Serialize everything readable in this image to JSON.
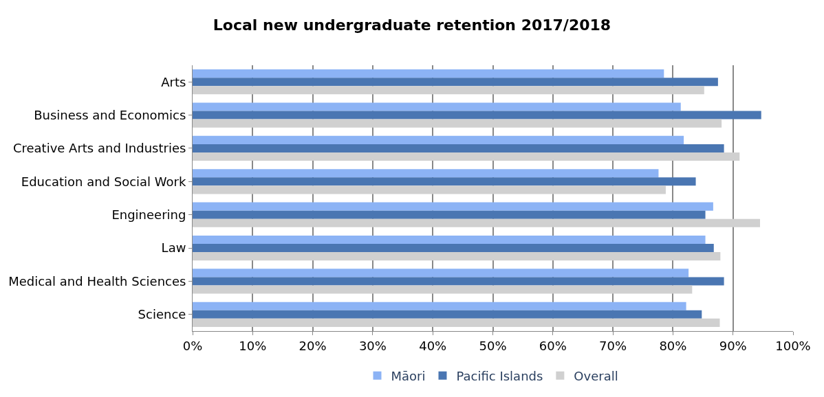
{
  "chart_data": {
    "type": "bar",
    "orientation": "horizontal",
    "title": "Local new undergraduate retention 2017/2018",
    "categories": [
      "Arts",
      "Business and Economics",
      "Creative Arts and Industries",
      "Education and Social Work",
      "Engineering",
      "Law",
      "Medical and Health Sciences",
      "Science"
    ],
    "series": [
      {
        "name": "Māori",
        "color": "#8cb3f5",
        "values": [
          78.5,
          81.3,
          81.8,
          77.6,
          86.7,
          85.4,
          82.6,
          82.2
        ]
      },
      {
        "name": "Pacific Islands",
        "color": "#4a76b2",
        "values": [
          87.5,
          94.7,
          88.5,
          83.8,
          85.4,
          86.8,
          88.5,
          84.8
        ]
      },
      {
        "name": "Overall",
        "color": "#d0d0d0",
        "values": [
          85.2,
          88.1,
          91.1,
          78.8,
          94.5,
          87.9,
          83.2,
          87.8
        ]
      }
    ],
    "xlim": [
      0,
      100
    ],
    "xticks": [
      {
        "value": 0,
        "label": "0%"
      },
      {
        "value": 10,
        "label": "10%"
      },
      {
        "value": 20,
        "label": "20%"
      },
      {
        "value": 30,
        "label": "30%"
      },
      {
        "value": 40,
        "label": "40%"
      },
      {
        "value": 50,
        "label": "50%"
      },
      {
        "value": 60,
        "label": "60%"
      },
      {
        "value": 70,
        "label": "70%"
      },
      {
        "value": 80,
        "label": "80%"
      },
      {
        "value": 90,
        "label": "90%"
      },
      {
        "value": 100,
        "label": "100%"
      }
    ],
    "grid": "x",
    "legend": "bottom"
  }
}
